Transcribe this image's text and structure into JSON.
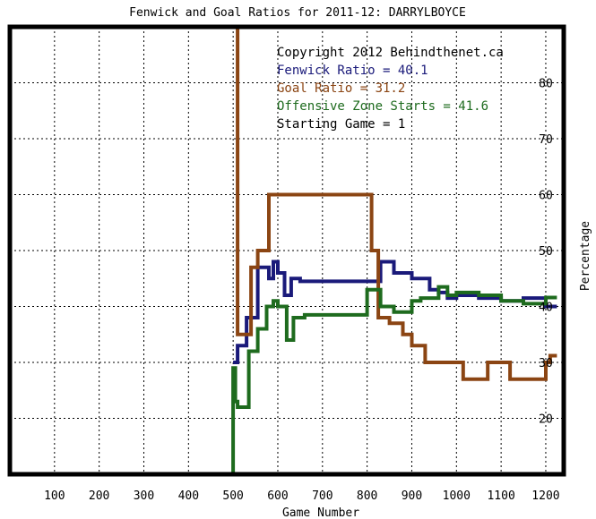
{
  "chart_data": {
    "type": "line",
    "title": "Fenwick and Goal Ratios for 2011-12: DARRYLBOYCE",
    "xlabel": "Game Number",
    "ylabel": "Percentage",
    "xlim": [
      0,
      1230
    ],
    "ylim": [
      10,
      90
    ],
    "xticks": [
      100,
      200,
      300,
      400,
      500,
      600,
      700,
      800,
      900,
      1000,
      1100,
      1200
    ],
    "yticks": [
      20,
      30,
      40,
      50,
      60,
      70,
      80
    ],
    "grid": true,
    "legend_position": "top-right",
    "annotations": [
      {
        "text": "Copyright 2012 Behindthenet.ca",
        "color": "#000000"
      },
      {
        "text": "Fenwick Ratio = 40.1",
        "color": "#1a1a7a"
      },
      {
        "text": "Goal Ratio = 31.2",
        "color": "#8b4513"
      },
      {
        "text": "Offensive Zone Starts = 41.6",
        "color": "#1e6b1e"
      },
      {
        "text": "Starting Game = 1",
        "color": "#000000"
      }
    ],
    "series": [
      {
        "color": "#1a1a7a",
        "x": [
          500,
          510,
          510,
          530,
          530,
          555,
          555,
          580,
          580,
          590,
          590,
          600,
          600,
          615,
          615,
          630,
          630,
          650,
          650,
          700,
          700,
          800,
          800,
          830,
          830,
          860,
          860,
          900,
          900,
          940,
          940,
          960,
          960,
          980,
          980,
          1000,
          1000,
          1050,
          1050,
          1100,
          1100,
          1150,
          1150,
          1200,
          1200,
          1225
        ],
        "y": [
          30,
          30,
          33,
          33,
          38,
          38,
          47,
          47,
          45,
          45,
          48,
          48,
          46,
          46,
          42,
          42,
          45,
          45,
          44.5,
          44.5,
          44.5,
          44.5,
          44.5,
          44.5,
          48,
          48,
          46,
          46,
          45,
          45,
          43,
          43,
          42.5,
          42.5,
          41.5,
          41.5,
          42,
          42,
          41.5,
          41.5,
          41,
          41,
          41.5,
          41.5,
          40,
          40
        ]
      },
      {
        "color": "#8b4513",
        "x": [
          500,
          510,
          510,
          540,
          540,
          555,
          555,
          580,
          580,
          700,
          700,
          810,
          810,
          825,
          825,
          850,
          850,
          880,
          880,
          900,
          900,
          930,
          930,
          975,
          975,
          1015,
          1015,
          1070,
          1070,
          1085,
          1085,
          1120,
          1120,
          1150,
          1150,
          1200,
          1200,
          1210,
          1210,
          1225
        ],
        "y": [
          90,
          90,
          35,
          35,
          47,
          47,
          50,
          50,
          60,
          60,
          60,
          60,
          50,
          50,
          38,
          38,
          37,
          37,
          35,
          35,
          33,
          33,
          30,
          30,
          30,
          30,
          27,
          27,
          30,
          30,
          30,
          30,
          27,
          27,
          27,
          27,
          30,
          30,
          31.2,
          31.2
        ]
      },
      {
        "color": "#1e6b1e",
        "x": [
          500,
          500,
          505,
          505,
          510,
          510,
          535,
          535,
          555,
          555,
          575,
          575,
          590,
          590,
          600,
          600,
          620,
          620,
          635,
          635,
          660,
          660,
          700,
          700,
          800,
          800,
          830,
          830,
          860,
          860,
          900,
          900,
          920,
          920,
          960,
          960,
          980,
          980,
          1000,
          1000,
          1050,
          1050,
          1100,
          1100,
          1150,
          1150,
          1200,
          1200,
          1225
        ],
        "y": [
          10,
          29,
          29,
          23,
          23,
          22,
          22,
          32,
          32,
          36,
          36,
          40,
          40,
          41,
          41,
          40,
          40,
          34,
          34,
          38,
          38,
          38.5,
          38.5,
          38.5,
          38.5,
          43,
          43,
          40,
          40,
          39,
          39,
          41,
          41,
          41.5,
          41.5,
          43.5,
          43.5,
          42,
          42,
          42.5,
          42.5,
          42,
          42,
          41,
          41,
          40.5,
          40.5,
          41.6,
          41.6
        ]
      }
    ]
  }
}
